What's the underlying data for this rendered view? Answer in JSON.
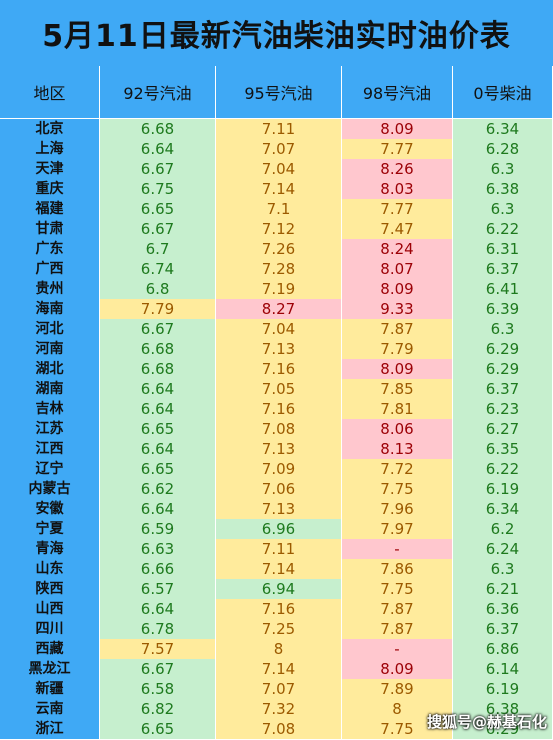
{
  "title": "5月11日最新汽油柴油实时油价表",
  "headers": [
    "地区",
    "92号汽油",
    "95号汽油",
    "98号汽油",
    "0号柴油"
  ],
  "colors": {
    "header": "#3fa9f5",
    "green": "#c6efce",
    "yellow": "#ffeb9c",
    "red": "#ffc7ce"
  },
  "rows": [
    {
      "region": "北京",
      "p92": "6.68",
      "p95": "7.11",
      "p98": "8.09",
      "p0": "6.34",
      "c92": "g",
      "c95": "y",
      "c98": "r",
      "c0": "g"
    },
    {
      "region": "上海",
      "p92": "6.64",
      "p95": "7.07",
      "p98": "7.77",
      "p0": "6.28",
      "c92": "g",
      "c95": "y",
      "c98": "y",
      "c0": "g"
    },
    {
      "region": "天津",
      "p92": "6.67",
      "p95": "7.04",
      "p98": "8.26",
      "p0": "6.3",
      "c92": "g",
      "c95": "y",
      "c98": "r",
      "c0": "g"
    },
    {
      "region": "重庆",
      "p92": "6.75",
      "p95": "7.14",
      "p98": "8.03",
      "p0": "6.38",
      "c92": "g",
      "c95": "y",
      "c98": "r",
      "c0": "g"
    },
    {
      "region": "福建",
      "p92": "6.65",
      "p95": "7.1",
      "p98": "7.77",
      "p0": "6.3",
      "c92": "g",
      "c95": "y",
      "c98": "y",
      "c0": "g"
    },
    {
      "region": "甘肃",
      "p92": "6.67",
      "p95": "7.12",
      "p98": "7.47",
      "p0": "6.22",
      "c92": "g",
      "c95": "y",
      "c98": "y",
      "c0": "g"
    },
    {
      "region": "广东",
      "p92": "6.7",
      "p95": "7.26",
      "p98": "8.24",
      "p0": "6.31",
      "c92": "g",
      "c95": "y",
      "c98": "r",
      "c0": "g"
    },
    {
      "region": "广西",
      "p92": "6.74",
      "p95": "7.28",
      "p98": "8.07",
      "p0": "6.37",
      "c92": "g",
      "c95": "y",
      "c98": "r",
      "c0": "g"
    },
    {
      "region": "贵州",
      "p92": "6.8",
      "p95": "7.19",
      "p98": "8.09",
      "p0": "6.41",
      "c92": "g",
      "c95": "y",
      "c98": "r",
      "c0": "g"
    },
    {
      "region": "海南",
      "p92": "7.79",
      "p95": "8.27",
      "p98": "9.33",
      "p0": "6.39",
      "c92": "y",
      "c95": "r",
      "c98": "r",
      "c0": "g"
    },
    {
      "region": "河北",
      "p92": "6.67",
      "p95": "7.04",
      "p98": "7.87",
      "p0": "6.3",
      "c92": "g",
      "c95": "y",
      "c98": "y",
      "c0": "g"
    },
    {
      "region": "河南",
      "p92": "6.68",
      "p95": "7.13",
      "p98": "7.79",
      "p0": "6.29",
      "c92": "g",
      "c95": "y",
      "c98": "y",
      "c0": "g"
    },
    {
      "region": "湖北",
      "p92": "6.68",
      "p95": "7.16",
      "p98": "8.09",
      "p0": "6.29",
      "c92": "g",
      "c95": "y",
      "c98": "r",
      "c0": "g"
    },
    {
      "region": "湖南",
      "p92": "6.64",
      "p95": "7.05",
      "p98": "7.85",
      "p0": "6.37",
      "c92": "g",
      "c95": "y",
      "c98": "y",
      "c0": "g"
    },
    {
      "region": "吉林",
      "p92": "6.64",
      "p95": "7.16",
      "p98": "7.81",
      "p0": "6.23",
      "c92": "g",
      "c95": "y",
      "c98": "y",
      "c0": "g"
    },
    {
      "region": "江苏",
      "p92": "6.65",
      "p95": "7.08",
      "p98": "8.06",
      "p0": "6.27",
      "c92": "g",
      "c95": "y",
      "c98": "r",
      "c0": "g"
    },
    {
      "region": "江西",
      "p92": "6.64",
      "p95": "7.13",
      "p98": "8.13",
      "p0": "6.35",
      "c92": "g",
      "c95": "y",
      "c98": "r",
      "c0": "g"
    },
    {
      "region": "辽宁",
      "p92": "6.65",
      "p95": "7.09",
      "p98": "7.72",
      "p0": "6.22",
      "c92": "g",
      "c95": "y",
      "c98": "y",
      "c0": "g"
    },
    {
      "region": "内蒙古",
      "p92": "6.62",
      "p95": "7.06",
      "p98": "7.75",
      "p0": "6.19",
      "c92": "g",
      "c95": "y",
      "c98": "y",
      "c0": "g"
    },
    {
      "region": "安徽",
      "p92": "6.64",
      "p95": "7.13",
      "p98": "7.96",
      "p0": "6.34",
      "c92": "g",
      "c95": "y",
      "c98": "y",
      "c0": "g"
    },
    {
      "region": "宁夏",
      "p92": "6.59",
      "p95": "6.96",
      "p98": "7.97",
      "p0": "6.2",
      "c92": "g",
      "c95": "g",
      "c98": "y",
      "c0": "g"
    },
    {
      "region": "青海",
      "p92": "6.63",
      "p95": "7.11",
      "p98": "-",
      "p0": "6.24",
      "c92": "g",
      "c95": "y",
      "c98": "r",
      "c0": "g"
    },
    {
      "region": "山东",
      "p92": "6.66",
      "p95": "7.14",
      "p98": "7.86",
      "p0": "6.3",
      "c92": "g",
      "c95": "y",
      "c98": "y",
      "c0": "g"
    },
    {
      "region": "陕西",
      "p92": "6.57",
      "p95": "6.94",
      "p98": "7.75",
      "p0": "6.21",
      "c92": "g",
      "c95": "g",
      "c98": "y",
      "c0": "g"
    },
    {
      "region": "山西",
      "p92": "6.64",
      "p95": "7.16",
      "p98": "7.87",
      "p0": "6.36",
      "c92": "g",
      "c95": "y",
      "c98": "y",
      "c0": "g"
    },
    {
      "region": "四川",
      "p92": "6.78",
      "p95": "7.25",
      "p98": "7.87",
      "p0": "6.37",
      "c92": "g",
      "c95": "y",
      "c98": "y",
      "c0": "g"
    },
    {
      "region": "西藏",
      "p92": "7.57",
      "p95": "8",
      "p98": "-",
      "p0": "6.86",
      "c92": "y",
      "c95": "y",
      "c98": "r",
      "c0": "g"
    },
    {
      "region": "黑龙江",
      "p92": "6.67",
      "p95": "7.14",
      "p98": "8.09",
      "p0": "6.14",
      "c92": "g",
      "c95": "y",
      "c98": "r",
      "c0": "g"
    },
    {
      "region": "新疆",
      "p92": "6.58",
      "p95": "7.07",
      "p98": "7.89",
      "p0": "6.19",
      "c92": "g",
      "c95": "y",
      "c98": "y",
      "c0": "g"
    },
    {
      "region": "云南",
      "p92": "6.82",
      "p95": "7.32",
      "p98": "8",
      "p0": "6.38",
      "c92": "g",
      "c95": "y",
      "c98": "y",
      "c0": "g"
    },
    {
      "region": "浙江",
      "p92": "6.65",
      "p95": "7.08",
      "p98": "7.75",
      "p0": "6.29",
      "c92": "g",
      "c95": "y",
      "c98": "y",
      "c0": "g"
    }
  ],
  "watermark": "搜狐号@赫基石化"
}
